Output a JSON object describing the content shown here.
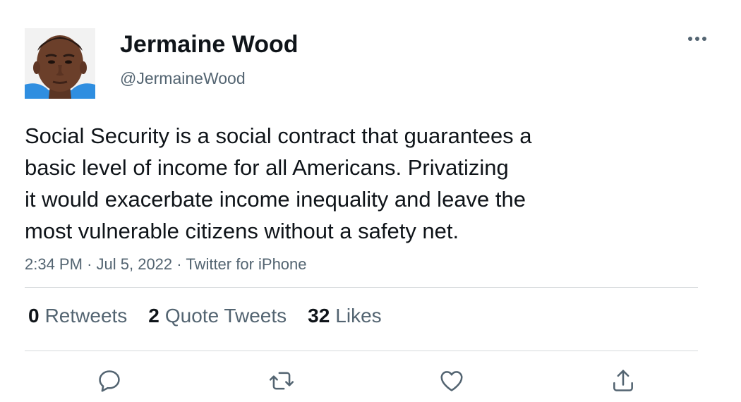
{
  "author": {
    "display_name": "Jermaine Wood",
    "handle": "@JermaineWood"
  },
  "tweet": {
    "lines": [
      "Social Security is a social contract that guarantees a",
      "basic level of income for all Americans. Privatizing",
      "it would exacerbate income inequality and leave the",
      "most vulnerable citizens without a safety net."
    ],
    "time": "2:34 PM",
    "date": "Jul 5, 2022",
    "source": "Twitter for iPhone",
    "separator": "·"
  },
  "stats": {
    "retweets_count": "0",
    "retweets_label": "Retweets",
    "quotes_count": "2",
    "quotes_label": "Quote Tweets",
    "likes_count": "32",
    "likes_label": "Likes"
  },
  "icons": {
    "more": "more-horizontal-icon",
    "reply": "reply-icon",
    "retweet": "retweet-icon",
    "like": "heart-icon",
    "share": "share-icon"
  },
  "colors": {
    "text": "#0f1419",
    "secondary": "#536471",
    "divider": "#d6d9dc",
    "icon": "#536471"
  }
}
